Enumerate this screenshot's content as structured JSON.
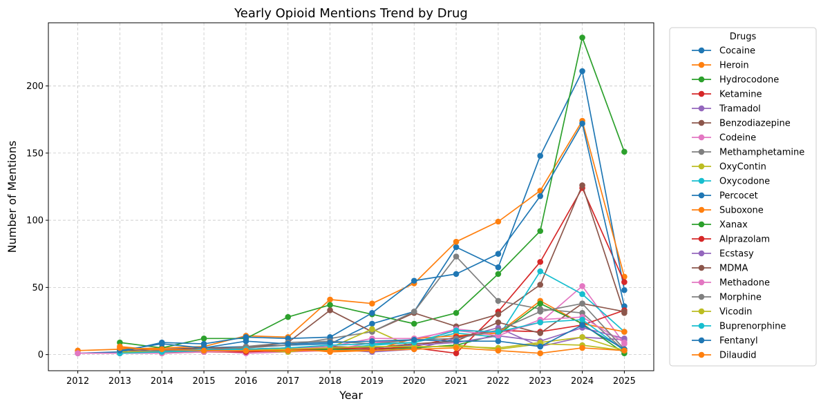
{
  "chart_data": {
    "type": "line",
    "title": "Yearly Opioid Mentions Trend by Drug",
    "xlabel": "Year",
    "ylabel": "Number of Mentions",
    "x": [
      2012,
      2013,
      2014,
      2015,
      2016,
      2017,
      2018,
      2019,
      2020,
      2021,
      2022,
      2023,
      2024,
      2025
    ],
    "xlim": [
      2011.3,
      2025.7
    ],
    "ylim": [
      -12,
      247
    ],
    "yticks": [
      0,
      50,
      100,
      150,
      200
    ],
    "grid": true,
    "legend_title": "Drugs",
    "legend_position": "outside-right",
    "series": [
      {
        "name": "Cocaine",
        "color": "#1f77b4",
        "values": [
          1,
          2,
          3,
          5,
          6,
          7,
          8,
          23,
          32,
          80,
          65,
          148,
          211,
          48
        ]
      },
      {
        "name": "Heroin",
        "color": "#ff7f0e",
        "values": [
          3,
          4,
          5,
          6,
          14,
          13,
          41,
          38,
          53,
          84,
          99,
          122,
          174,
          58
        ]
      },
      {
        "name": "Hydrocodone",
        "color": "#2ca02c",
        "values": [
          null,
          9,
          5,
          12,
          12,
          28,
          37,
          30,
          23,
          31,
          60,
          92,
          236,
          151
        ]
      },
      {
        "name": "Ketamine",
        "color": "#d62728",
        "values": [
          null,
          2,
          2,
          3,
          4,
          3,
          5,
          4,
          5,
          1,
          32,
          69,
          124,
          54
        ]
      },
      {
        "name": "Tramadol",
        "color": "#9467bd",
        "values": [
          1,
          1,
          1,
          2,
          3,
          4,
          4,
          2,
          4,
          12,
          20,
          6,
          13,
          11
        ]
      },
      {
        "name": "Benzodiazepine",
        "color": "#8c564b",
        "values": [
          null,
          3,
          4,
          5,
          5,
          9,
          33,
          17,
          31,
          21,
          30,
          52,
          126,
          31
        ]
      },
      {
        "name": "Codeine",
        "color": "#e377c2",
        "values": [
          1,
          1,
          2,
          3,
          1,
          2,
          3,
          9,
          11,
          19,
          16,
          24,
          51,
          8
        ]
      },
      {
        "name": "Methamphetamine",
        "color": "#7f7f7f",
        "values": [
          null,
          2,
          3,
          4,
          5,
          7,
          12,
          17,
          32,
          73,
          40,
          34,
          31,
          3
        ]
      },
      {
        "name": "OxyContin",
        "color": "#bcbd22",
        "values": [
          null,
          1,
          1,
          2,
          3,
          2,
          5,
          19,
          5,
          7,
          4,
          8,
          7,
          3
        ]
      },
      {
        "name": "Oxycodone",
        "color": "#17becf",
        "values": [
          null,
          1,
          2,
          4,
          4,
          3,
          4,
          7,
          9,
          16,
          13,
          62,
          45,
          17
        ]
      },
      {
        "name": "Percocet",
        "color": "#1f77b4",
        "values": [
          null,
          2,
          9,
          8,
          13,
          12,
          13,
          31,
          55,
          60,
          75,
          118,
          172,
          36
        ]
      },
      {
        "name": "Suboxone",
        "color": "#ff7f0e",
        "values": [
          null,
          6,
          3,
          2,
          3,
          5,
          2,
          3,
          12,
          14,
          16,
          40,
          23,
          17
        ]
      },
      {
        "name": "Xanax",
        "color": "#2ca02c",
        "values": [
          null,
          2,
          2,
          2,
          3,
          3,
          4,
          4,
          5,
          7,
          15,
          38,
          23,
          1
        ]
      },
      {
        "name": "Alprazolam",
        "color": "#d62728",
        "values": [
          null,
          1,
          2,
          2,
          2,
          3,
          5,
          4,
          6,
          13,
          18,
          17,
          22,
          33
        ]
      },
      {
        "name": "Ecstasy",
        "color": "#9467bd",
        "values": [
          null,
          2,
          3,
          3,
          4,
          5,
          6,
          5,
          7,
          9,
          14,
          10,
          20,
          12
        ]
      },
      {
        "name": "MDMA",
        "color": "#8c564b",
        "values": [
          null,
          2,
          3,
          3,
          4,
          5,
          6,
          5,
          8,
          10,
          24,
          16,
          38,
          32
        ]
      },
      {
        "name": "Methadone",
        "color": "#e377c2",
        "values": [
          null,
          1,
          1,
          2,
          3,
          4,
          6,
          12,
          12,
          18,
          14,
          26,
          28,
          9
        ]
      },
      {
        "name": "Morphine",
        "color": "#7f7f7f",
        "values": [
          null,
          2,
          3,
          3,
          6,
          9,
          10,
          8,
          11,
          12,
          18,
          32,
          38,
          4
        ]
      },
      {
        "name": "Vicodin",
        "color": "#bcbd22",
        "values": [
          null,
          2,
          2,
          3,
          3,
          4,
          5,
          6,
          6,
          6,
          5,
          9,
          13,
          3
        ]
      },
      {
        "name": "Buprenorphine",
        "color": "#17becf",
        "values": [
          null,
          1,
          2,
          3,
          4,
          5,
          7,
          8,
          9,
          18,
          17,
          24,
          26,
          3
        ]
      },
      {
        "name": "Fentanyl",
        "color": "#1f77b4",
        "values": [
          null,
          3,
          8,
          5,
          10,
          8,
          9,
          10,
          11,
          10,
          10,
          6,
          22,
          4
        ]
      },
      {
        "name": "Dilaudid",
        "color": "#ff7f0e",
        "values": [
          null,
          5,
          4,
          3,
          3,
          3,
          3,
          3,
          4,
          5,
          3,
          1,
          5,
          3
        ]
      }
    ]
  }
}
